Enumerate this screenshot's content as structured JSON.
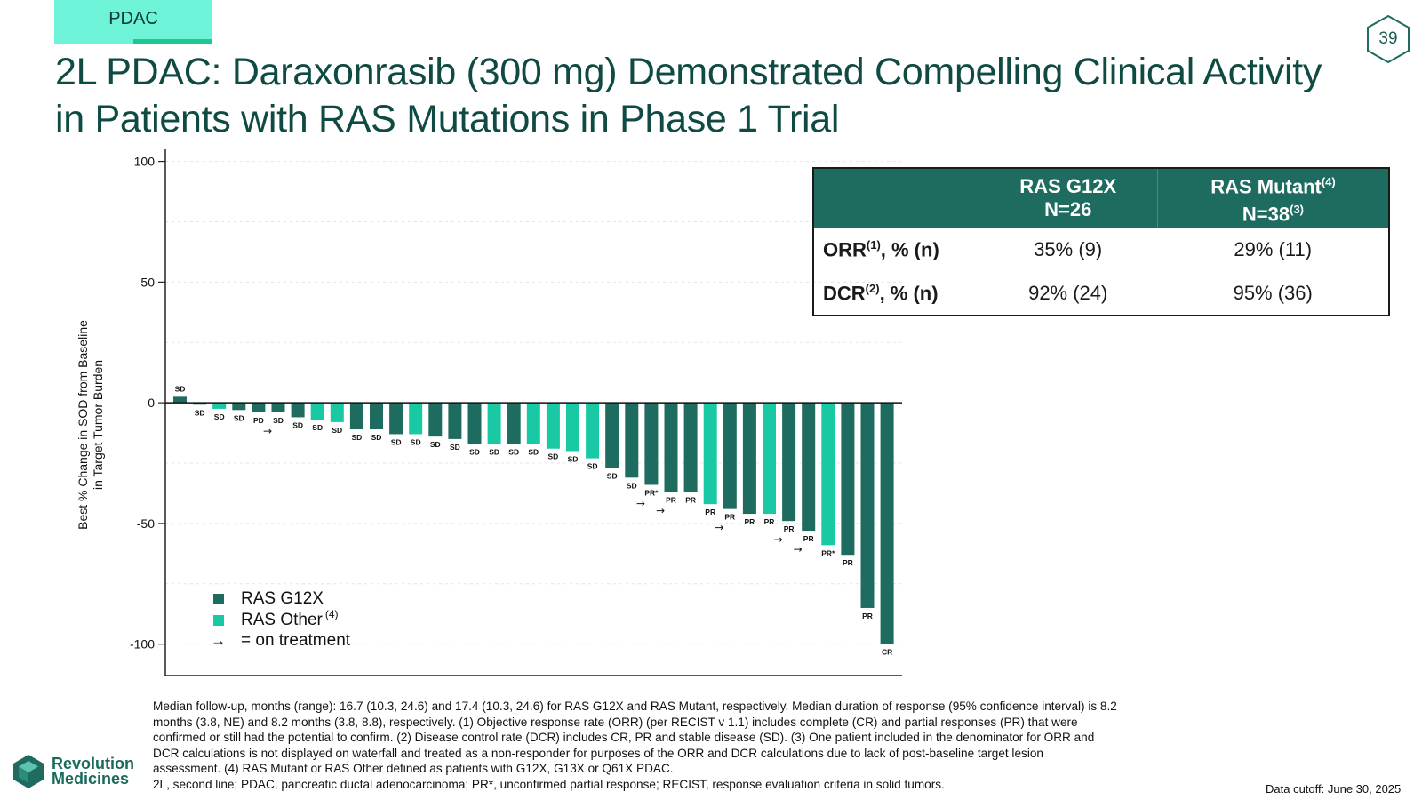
{
  "header": {
    "tag": "PDAC",
    "page_number": "39",
    "title": "2L PDAC: Daraxonrasib (300 mg) Demonstrated Compelling Clinical Activity in Patients with RAS Mutations in Phase 1 Trial"
  },
  "colors": {
    "g12x": "#1e6b5f",
    "other": "#19c9a4",
    "title": "#0f4a43",
    "table_header": "#1e6b5f"
  },
  "response_table": {
    "col1_label": "RAS G12X",
    "col1_n": "N=26",
    "col2_label": "RAS Mutant",
    "col2_sup": "(4)",
    "col2_n": "N=38",
    "col2_n_sup": "(3)",
    "rows": [
      {
        "label": "ORR",
        "sup": "(1)",
        "suffix": ", % (n)",
        "g12x": "35% (9)",
        "mutant": "29% (11)"
      },
      {
        "label": "DCR",
        "sup": "(2)",
        "suffix": ", % (n)",
        "g12x": "92% (24)",
        "mutant": "95% (36)"
      }
    ]
  },
  "chart_data": {
    "type": "bar",
    "ylabel_line1": "Best % Change in SOD from Baseline",
    "ylabel_line2": "in Target Tumor Burden",
    "ylim": [
      -113,
      105
    ],
    "yticks": [
      100,
      50,
      0,
      -50,
      -100
    ],
    "grid": "dashed",
    "legend": {
      "placement": "bottom-left",
      "g12x": "RAS G12X",
      "other": "RAS Other",
      "other_sup": "(4)",
      "arrow_symbol": "→",
      "arrow_text": "= on treatment"
    },
    "series": [
      {
        "name": "RAS G12X",
        "key": "g12x"
      },
      {
        "name": "RAS Other",
        "key": "other"
      }
    ],
    "bars": [
      {
        "value": 2.5,
        "group": "g12x",
        "label": "SD",
        "on_treatment": false
      },
      {
        "value": -0.8,
        "group": "g12x",
        "label": "SD",
        "on_treatment": false
      },
      {
        "value": -2.5,
        "group": "other",
        "label": "SD",
        "on_treatment": false
      },
      {
        "value": -3.0,
        "group": "g12x",
        "label": "SD",
        "on_treatment": false
      },
      {
        "value": -4.0,
        "group": "g12x",
        "label": "PD",
        "on_treatment": false
      },
      {
        "value": -4.0,
        "group": "g12x",
        "label": "SD",
        "on_treatment": true
      },
      {
        "value": -6.0,
        "group": "g12x",
        "label": "SD",
        "on_treatment": false
      },
      {
        "value": -7.0,
        "group": "other",
        "label": "SD",
        "on_treatment": false
      },
      {
        "value": -8.0,
        "group": "other",
        "label": "SD",
        "on_treatment": false
      },
      {
        "value": -11.0,
        "group": "g12x",
        "label": "SD",
        "on_treatment": false
      },
      {
        "value": -11.0,
        "group": "g12x",
        "label": "SD",
        "on_treatment": false
      },
      {
        "value": -13.0,
        "group": "g12x",
        "label": "SD",
        "on_treatment": false
      },
      {
        "value": -13.0,
        "group": "other",
        "label": "SD",
        "on_treatment": false
      },
      {
        "value": -14.0,
        "group": "g12x",
        "label": "SD",
        "on_treatment": false
      },
      {
        "value": -15.0,
        "group": "g12x",
        "label": "SD",
        "on_treatment": false
      },
      {
        "value": -17.0,
        "group": "g12x",
        "label": "SD",
        "on_treatment": false
      },
      {
        "value": -17.0,
        "group": "other",
        "label": "SD",
        "on_treatment": false
      },
      {
        "value": -17.0,
        "group": "g12x",
        "label": "SD",
        "on_treatment": false
      },
      {
        "value": -17.0,
        "group": "other",
        "label": "SD",
        "on_treatment": false
      },
      {
        "value": -19.0,
        "group": "other",
        "label": "SD",
        "on_treatment": false
      },
      {
        "value": -20.0,
        "group": "other",
        "label": "SD",
        "on_treatment": false
      },
      {
        "value": -23.0,
        "group": "other",
        "label": "SD",
        "on_treatment": false
      },
      {
        "value": -27.0,
        "group": "g12x",
        "label": "SD",
        "on_treatment": false
      },
      {
        "value": -31.0,
        "group": "g12x",
        "label": "SD",
        "on_treatment": false
      },
      {
        "value": -34.0,
        "group": "g12x",
        "label": "PR*",
        "on_treatment": true
      },
      {
        "value": -37.0,
        "group": "g12x",
        "label": "PR",
        "on_treatment": true
      },
      {
        "value": -37.0,
        "group": "g12x",
        "label": "PR",
        "on_treatment": false
      },
      {
        "value": -42.0,
        "group": "other",
        "label": "PR",
        "on_treatment": false
      },
      {
        "value": -44.0,
        "group": "g12x",
        "label": "PR",
        "on_treatment": true
      },
      {
        "value": -46.0,
        "group": "g12x",
        "label": "PR",
        "on_treatment": false
      },
      {
        "value": -46.0,
        "group": "other",
        "label": "PR",
        "on_treatment": false
      },
      {
        "value": -49.0,
        "group": "g12x",
        "label": "PR",
        "on_treatment": true
      },
      {
        "value": -53.0,
        "group": "g12x",
        "label": "PR",
        "on_treatment": true
      },
      {
        "value": -59.0,
        "group": "other",
        "label": "PR*",
        "on_treatment": false
      },
      {
        "value": -63.0,
        "group": "g12x",
        "label": "PR",
        "on_treatment": false
      },
      {
        "value": -85.0,
        "group": "g12x",
        "label": "PR",
        "on_treatment": false
      },
      {
        "value": -100.0,
        "group": "g12x",
        "label": "CR",
        "on_treatment": false
      }
    ]
  },
  "footnote": {
    "lines": [
      "Median follow-up, months (range): 16.7 (10.3, 24.6) and 17.4 (10.3, 24.6) for RAS G12X and RAS Mutant, respectively. Median duration of response (95% confidence interval) is 8.2",
      "months (3.8, NE) and 8.2 months (3.8, 8.8), respectively. (1) Objective response rate (ORR) (per RECIST v 1.1) includes complete (CR) and partial responses (PR) that were",
      "confirmed or still had the potential to confirm. (2) Disease control rate (DCR) includes CR, PR and stable disease (SD). (3) One patient included in the denominator for ORR and",
      "DCR calculations is not displayed on waterfall and treated as a non-responder for purposes of the ORR and DCR calculations due to lack of post-baseline target lesion",
      "assessment. (4) RAS Mutant or RAS Other defined as patients with G12X, G13X or Q61X PDAC.",
      "2L, second line; PDAC, pancreatic ductal adenocarcinoma; PR*, unconfirmed partial response; RECIST, response evaluation criteria in solid tumors."
    ],
    "cutoff": "Data cutoff: June 30, 2025"
  },
  "logo": {
    "line1": "Revolution",
    "line2": "Medicines"
  }
}
